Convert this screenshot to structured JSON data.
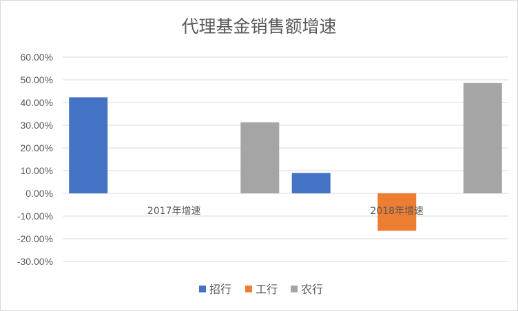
{
  "chart_data": {
    "type": "bar",
    "title": "代理基金销售额增速",
    "categories": [
      "2017年增速",
      "2018年增速"
    ],
    "series": [
      {
        "name": "招行",
        "color": "#4472C4",
        "values": [
          0.423,
          0.09
        ]
      },
      {
        "name": "工行",
        "color": "#ED7D31",
        "values": [
          0.0,
          -0.165
        ]
      },
      {
        "name": "农行",
        "color": "#A5A5A5",
        "values": [
          0.313,
          0.486
        ]
      }
    ],
    "ylim": [
      -0.3,
      0.6
    ],
    "ytick_step": 0.1,
    "ytick_labels": [
      "60.00%",
      "50.00%",
      "40.00%",
      "30.00%",
      "20.00%",
      "10.00%",
      "0.00%",
      "-10.00%",
      "-20.00%",
      "-30.00%"
    ],
    "grid": true,
    "legend_position": "bottom"
  }
}
